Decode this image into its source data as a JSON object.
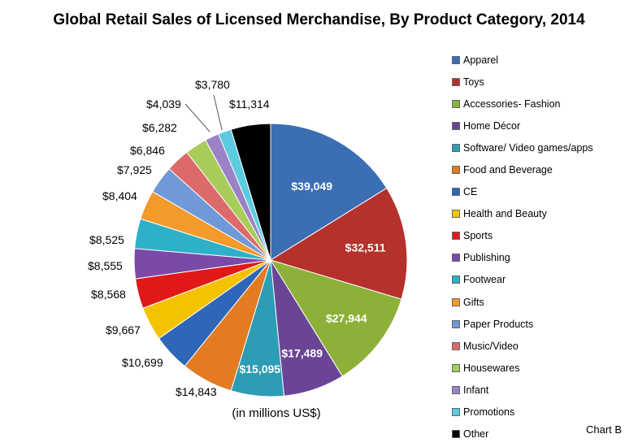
{
  "chart_data": {
    "type": "pie",
    "title": "Global Retail Sales of Licensed Merchandise, By Product Category, 2014",
    "unit_note": "(in millions US$)",
    "tag": "Chart B",
    "legend_position": "right",
    "slices": [
      {
        "name": "Apparel",
        "value": 39049,
        "label": "$39,049",
        "color": "#3c6eb4"
      },
      {
        "name": "Toys",
        "value": 32511,
        "label": "$32,511",
        "color": "#b5312c"
      },
      {
        "name": "Accessories- Fashion",
        "value": 27944,
        "label": "$27,944",
        "color": "#8db138"
      },
      {
        "name": "Home Décor",
        "value": 17489,
        "label": "$17,489",
        "color": "#6a4595"
      },
      {
        "name": "Software/ Video games/apps",
        "value": 15095,
        "label": "$15,095",
        "color": "#2d9cb5"
      },
      {
        "name": "Food and Beverage",
        "value": 14843,
        "label": "$14,843",
        "color": "#e27b22"
      },
      {
        "name": "CE",
        "value": 10699,
        "label": "$10,699",
        "color": "#2e66b8"
      },
      {
        "name": "Health and Beauty",
        "value": 9667,
        "label": "$9,667",
        "color": "#f5c200"
      },
      {
        "name": "Sports",
        "value": 8568,
        "label": "$8,568",
        "color": "#e01818"
      },
      {
        "name": "Publishing",
        "value": 8555,
        "label": "$8,555",
        "color": "#7a4aa8"
      },
      {
        "name": "Footwear",
        "value": 8525,
        "label": "$8,525",
        "color": "#2eb0c8"
      },
      {
        "name": "Gifts",
        "value": 8404,
        "label": "$8,404",
        "color": "#f39a2b"
      },
      {
        "name": "Paper Products",
        "value": 7925,
        "label": "$7,925",
        "color": "#6f99d8"
      },
      {
        "name": "Music/Video",
        "value": 6846,
        "label": "$6,846",
        "color": "#dd6a6a"
      },
      {
        "name": "Housewares",
        "value": 6282,
        "label": "$6,282",
        "color": "#a8cc5a"
      },
      {
        "name": "Infant",
        "value": 4039,
        "label": "$4,039",
        "color": "#9b82c6"
      },
      {
        "name": "Promotions",
        "value": 3780,
        "label": "$3,780",
        "color": "#5ccbe0"
      },
      {
        "name": "Other",
        "value": 11314,
        "label": "$11,314",
        "color": "#000000"
      }
    ]
  }
}
